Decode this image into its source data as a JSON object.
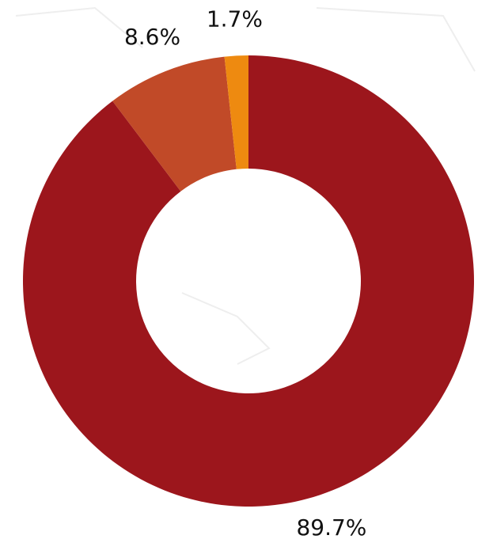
{
  "chart_data": {
    "type": "pie",
    "values": [
      89.7,
      8.6,
      1.7
    ],
    "value_labels": [
      "89.7%",
      "8.6%",
      "1.7%"
    ],
    "colors": [
      "#9c161c",
      "#c14a28",
      "#ee8a10"
    ]
  }
}
